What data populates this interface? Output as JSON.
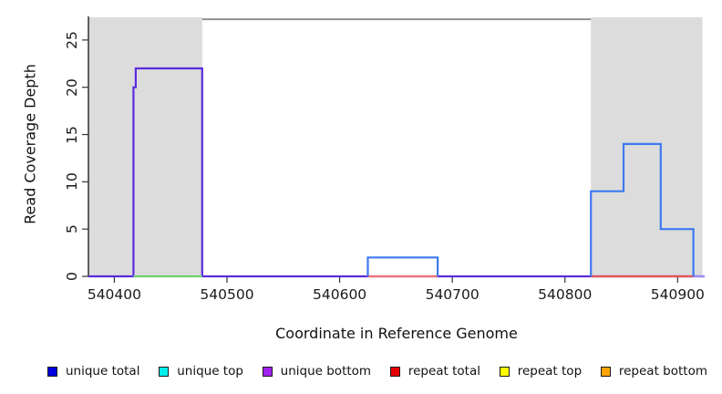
{
  "chart_data": {
    "type": "line",
    "step": true,
    "title": "",
    "xlabel": "Coordinate in Reference Genome",
    "ylabel": "Read Coverage Depth",
    "xlim": [
      540377,
      540924
    ],
    "ylim": [
      0,
      27.4
    ],
    "x_ticks": [
      540400,
      540500,
      540600,
      540700,
      540800,
      540900
    ],
    "y_ticks": [
      0,
      5,
      10,
      15,
      20,
      25
    ],
    "grid": false,
    "axis_color": "#000000",
    "tick_color": "#333333",
    "shaded_regions": [
      {
        "from": 540377,
        "to": 540478,
        "fill": "#dcdcdc"
      },
      {
        "from": 540823,
        "to": 540922,
        "fill": "#dcdcdc"
      }
    ],
    "top_rule": {
      "from": 540478,
      "to": 540823,
      "depth": 27.2,
      "color": "#909090"
    },
    "series": [
      {
        "name": "unique-bottom-and-total-overlap-violet",
        "color": "#5c2be0",
        "points": [
          [
            540377,
            0
          ],
          [
            540417,
            0
          ],
          [
            540417,
            20
          ],
          [
            540419,
            20
          ],
          [
            540419,
            22
          ],
          [
            540478,
            22
          ],
          [
            540478,
            0
          ],
          [
            540924,
            0
          ]
        ]
      },
      {
        "name": "zero-line-green-left",
        "color": "#70d070",
        "points": [
          [
            540417,
            0
          ],
          [
            540478,
            0
          ]
        ]
      },
      {
        "name": "repeat-total-zero-mid",
        "color": "#f07474",
        "points": [
          [
            540625,
            0
          ],
          [
            540687,
            0
          ]
        ]
      },
      {
        "name": "repeat-total-zero-right",
        "color": "#e35555",
        "points": [
          [
            540823,
            0
          ],
          [
            540914,
            0
          ]
        ]
      },
      {
        "name": "unique-bottom-only-stub",
        "color": "#9d8cf0",
        "points": [
          [
            540914,
            0
          ],
          [
            540924,
            0
          ]
        ]
      },
      {
        "name": "unique-total-mid-step",
        "color": "#3e79f0",
        "points": [
          [
            540625,
            0
          ],
          [
            540625,
            2
          ],
          [
            540687,
            2
          ],
          [
            540687,
            0
          ]
        ]
      },
      {
        "name": "unique-total-right-steps",
        "color": "#3e79f0",
        "points": [
          [
            540823,
            0
          ],
          [
            540823,
            9
          ],
          [
            540852,
            9
          ],
          [
            540852,
            14
          ],
          [
            540885,
            14
          ],
          [
            540885,
            5
          ],
          [
            540914,
            5
          ],
          [
            540914,
            0
          ]
        ]
      }
    ],
    "legend_position": "bottom"
  },
  "legend": {
    "items": [
      {
        "label": "unique total",
        "color": "#0000e0"
      },
      {
        "label": "unique top",
        "color": "#00eeee"
      },
      {
        "label": "unique bottom",
        "color": "#a020f0"
      },
      {
        "label": "repeat total",
        "color": "#e60000"
      },
      {
        "label": "repeat top",
        "color": "#ffff00"
      },
      {
        "label": "repeat bottom",
        "color": "#ffa500"
      }
    ]
  }
}
